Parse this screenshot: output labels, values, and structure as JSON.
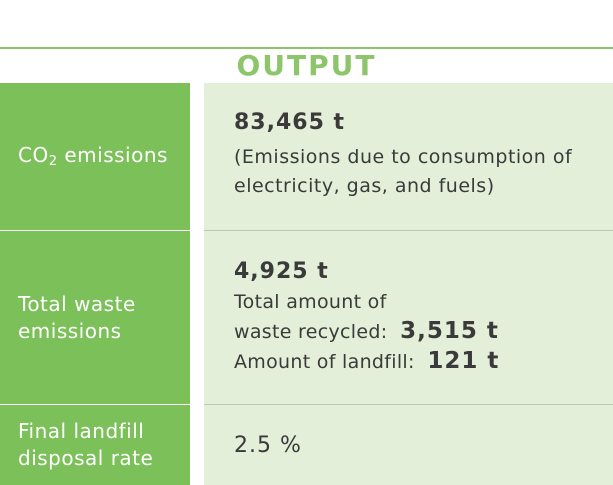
{
  "section_title": "OUTPUT",
  "rows": [
    {
      "label_main": "CO",
      "label_sub": "2",
      "label_rest": " emissions",
      "value": "83,465 t",
      "note_line1": "(Emissions due to consumption of",
      "note_line2": "electricity, gas, and fuels)"
    },
    {
      "label_line1": "Total waste",
      "label_line2": "emissions",
      "value": "4,925 t",
      "recycled_line1": "Total amount of",
      "recycled_line2": "waste recycled: ",
      "recycled_value": "3,515 t",
      "landfill_label": "Amount of landfill: ",
      "landfill_value": "121 t"
    },
    {
      "label_line1": "Final landfill",
      "label_line2": "disposal rate",
      "value": "2.5 %"
    }
  ],
  "colors": {
    "accent": "#8cc56a",
    "label_bg": "#7cc05a",
    "value_bg": "#e3efd8"
  }
}
